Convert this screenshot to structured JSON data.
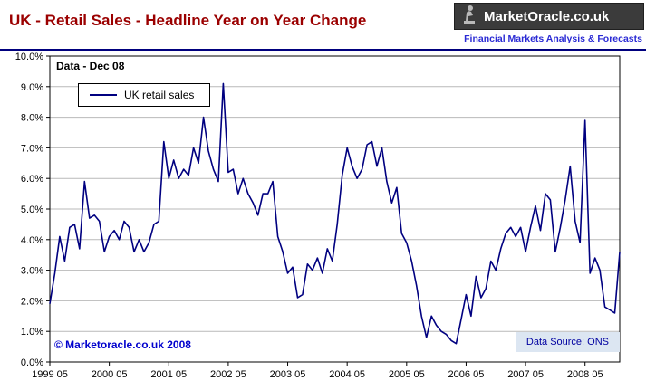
{
  "header": {
    "title": "UK - Retail Sales - Headline Year on Year Change",
    "logo_text": "MarketOracle.co.uk",
    "tagline": "Financial Markets Analysis & Forecasts"
  },
  "annotations": {
    "data_label": "Data - Dec 08",
    "copyright": "© Marketoracle.co.uk 2008",
    "source": "Data Source: ONS"
  },
  "legend": {
    "label": "UK retail sales"
  },
  "colors": {
    "title_red": "#9b0000",
    "line_navy": "#000080",
    "tagline_blue": "#2a2ad4",
    "annotation_blue": "#0000cd",
    "source_band_bg": "#dce6f2",
    "gridline_gray": "#b9b9b9"
  },
  "chart_data": {
    "type": "line",
    "title": "UK - Retail Sales - Headline Year on Year Change",
    "xlabel": "",
    "ylabel": "",
    "ylim": [
      0,
      10
    ],
    "grid": "horizontal",
    "legend_position": "top-left",
    "line_color": "#000080",
    "x_start": "1999-05",
    "x_end": "2008-12",
    "x_interval": "monthly",
    "x_tick_labels": [
      "1999 05",
      "2000 05",
      "2001 05",
      "2002 05",
      "2003 05",
      "2004 05",
      "2005 05",
      "2006 05",
      "2007 05",
      "2008 05"
    ],
    "y_tick_labels": [
      "0.0%",
      "1.0%",
      "2.0%",
      "3.0%",
      "4.0%",
      "5.0%",
      "6.0%",
      "7.0%",
      "8.0%",
      "9.0%",
      "10.0%"
    ],
    "series": [
      {
        "name": "UK retail sales",
        "values": [
          1.9,
          2.9,
          4.1,
          3.3,
          4.4,
          4.5,
          3.7,
          5.9,
          4.7,
          4.8,
          4.6,
          3.6,
          4.1,
          4.3,
          4.0,
          4.6,
          4.4,
          3.6,
          4.0,
          3.6,
          3.9,
          4.5,
          4.6,
          7.2,
          6.0,
          6.6,
          6.0,
          6.3,
          6.1,
          7.0,
          6.5,
          8.0,
          6.9,
          6.3,
          5.9,
          9.1,
          6.2,
          6.3,
          5.5,
          6.0,
          5.5,
          5.2,
          4.8,
          5.5,
          5.5,
          5.9,
          4.1,
          3.6,
          2.9,
          3.1,
          2.1,
          2.2,
          3.2,
          3.0,
          3.4,
          2.9,
          3.7,
          3.3,
          4.5,
          6.1,
          7.0,
          6.4,
          6.0,
          6.3,
          7.1,
          7.2,
          6.4,
          7.0,
          5.9,
          5.2,
          5.7,
          4.2,
          3.9,
          3.3,
          2.5,
          1.5,
          0.8,
          1.5,
          1.2,
          1.0,
          0.9,
          0.7,
          0.6,
          1.4,
          2.2,
          1.5,
          2.8,
          2.1,
          2.4,
          3.3,
          3.0,
          3.7,
          4.2,
          4.4,
          4.1,
          4.4,
          3.6,
          4.4,
          5.1,
          4.3,
          5.5,
          5.3,
          3.6,
          4.4,
          5.3,
          6.4,
          4.6,
          3.9,
          7.9,
          2.9,
          3.4,
          3.0,
          1.8,
          1.7,
          1.6,
          3.6
        ]
      }
    ]
  }
}
